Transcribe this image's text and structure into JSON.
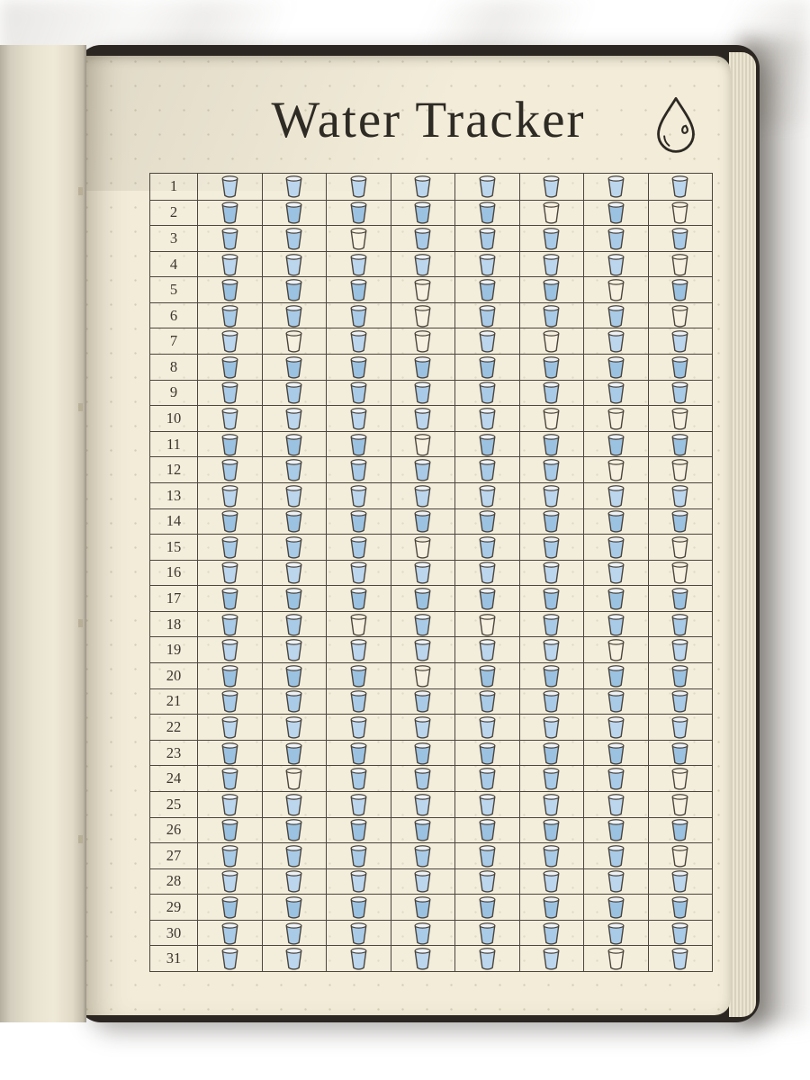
{
  "page": {
    "title": "Water Tracker",
    "icon": "water-drop-icon"
  },
  "colors": {
    "paper": "#f2ecd9",
    "cover": "#2b2621",
    "ink": "#2e2a24",
    "grid_line": "#4c463d",
    "water_blue": "#a9cbe8",
    "water_blue_light": "#bcd6ee",
    "water_blue_deep": "#9cc2e2",
    "empty_cup": "#f6f0e0"
  },
  "tracker": {
    "days": 31,
    "cups_per_day": 8,
    "rows": [
      {
        "day": 1,
        "cups": [
          1,
          1,
          1,
          1,
          1,
          1,
          1,
          1
        ]
      },
      {
        "day": 2,
        "cups": [
          1,
          1,
          1,
          1,
          1,
          0,
          1,
          0
        ]
      },
      {
        "day": 3,
        "cups": [
          1,
          1,
          0,
          1,
          1,
          1,
          1,
          1
        ]
      },
      {
        "day": 4,
        "cups": [
          1,
          1,
          1,
          1,
          1,
          1,
          1,
          0
        ]
      },
      {
        "day": 5,
        "cups": [
          1,
          1,
          1,
          0,
          1,
          1,
          0,
          1
        ]
      },
      {
        "day": 6,
        "cups": [
          1,
          1,
          1,
          0,
          1,
          1,
          1,
          0
        ]
      },
      {
        "day": 7,
        "cups": [
          1,
          0,
          1,
          0,
          1,
          0,
          1,
          1
        ]
      },
      {
        "day": 8,
        "cups": [
          1,
          1,
          1,
          1,
          1,
          1,
          1,
          1
        ]
      },
      {
        "day": 9,
        "cups": [
          1,
          1,
          1,
          1,
          1,
          1,
          1,
          1
        ]
      },
      {
        "day": 10,
        "cups": [
          1,
          1,
          1,
          1,
          1,
          0,
          0,
          0
        ]
      },
      {
        "day": 11,
        "cups": [
          1,
          1,
          1,
          0,
          1,
          1,
          1,
          1
        ]
      },
      {
        "day": 12,
        "cups": [
          1,
          1,
          1,
          1,
          1,
          1,
          0,
          0
        ]
      },
      {
        "day": 13,
        "cups": [
          1,
          1,
          1,
          1,
          1,
          1,
          1,
          1
        ]
      },
      {
        "day": 14,
        "cups": [
          1,
          1,
          1,
          1,
          1,
          1,
          1,
          1
        ]
      },
      {
        "day": 15,
        "cups": [
          1,
          1,
          1,
          0,
          1,
          1,
          1,
          0
        ]
      },
      {
        "day": 16,
        "cups": [
          1,
          1,
          1,
          1,
          1,
          1,
          1,
          0
        ]
      },
      {
        "day": 17,
        "cups": [
          1,
          1,
          1,
          1,
          1,
          1,
          1,
          1
        ]
      },
      {
        "day": 18,
        "cups": [
          1,
          1,
          0,
          1,
          0,
          1,
          1,
          1
        ]
      },
      {
        "day": 19,
        "cups": [
          1,
          1,
          1,
          1,
          1,
          1,
          0,
          1
        ]
      },
      {
        "day": 20,
        "cups": [
          1,
          1,
          1,
          0,
          1,
          1,
          1,
          1
        ]
      },
      {
        "day": 21,
        "cups": [
          1,
          1,
          1,
          1,
          1,
          1,
          1,
          1
        ]
      },
      {
        "day": 22,
        "cups": [
          1,
          1,
          1,
          1,
          1,
          1,
          1,
          1
        ]
      },
      {
        "day": 23,
        "cups": [
          1,
          1,
          1,
          1,
          1,
          1,
          1,
          1
        ]
      },
      {
        "day": 24,
        "cups": [
          1,
          0,
          1,
          1,
          1,
          1,
          1,
          0
        ]
      },
      {
        "day": 25,
        "cups": [
          1,
          1,
          1,
          1,
          1,
          1,
          1,
          0
        ]
      },
      {
        "day": 26,
        "cups": [
          1,
          1,
          1,
          1,
          1,
          1,
          1,
          1
        ]
      },
      {
        "day": 27,
        "cups": [
          1,
          1,
          1,
          1,
          1,
          1,
          1,
          0
        ]
      },
      {
        "day": 28,
        "cups": [
          1,
          1,
          1,
          1,
          1,
          1,
          1,
          1
        ]
      },
      {
        "day": 29,
        "cups": [
          1,
          1,
          1,
          1,
          1,
          1,
          1,
          1
        ]
      },
      {
        "day": 30,
        "cups": [
          1,
          1,
          1,
          1,
          1,
          1,
          1,
          1
        ]
      },
      {
        "day": 31,
        "cups": [
          1,
          1,
          1,
          1,
          1,
          1,
          0,
          1
        ]
      }
    ]
  }
}
